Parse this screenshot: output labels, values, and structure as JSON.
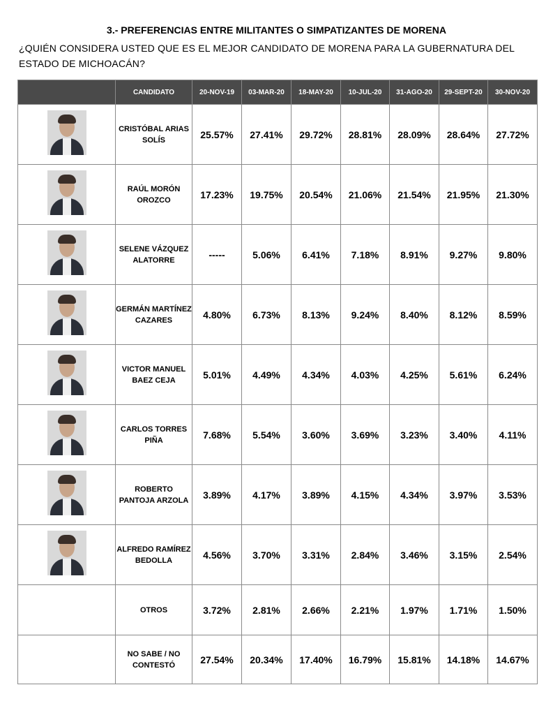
{
  "title": "3.- PREFERENCIAS ENTRE MILITANTES O SIMPATIZANTES DE MORENA",
  "question": "¿QUIÉN CONSIDERA USTED QUE ES EL MEJOR CANDIDATO DE MORENA PARA LA GUBERNATURA DEL ESTADO DE MICHOACÁN?",
  "table": {
    "headers": [
      "",
      "CANDIDATO",
      "20-NOV-19",
      "03-MAR-20",
      "18-MAY-20",
      "10-JUL-20",
      "31-AGO-20",
      "29-SEPT-20",
      "30-NOV-20"
    ],
    "rows": [
      {
        "name": "CRISTÓBAL ARIAS SOLÍS",
        "photo": "portrait-photo",
        "values": [
          "25.57%",
          "27.41%",
          "29.72%",
          "28.81%",
          "28.09%",
          "28.64%",
          "27.72%"
        ]
      },
      {
        "name": "RAÚL MORÓN OROZCO",
        "photo": "portrait-photo",
        "values": [
          "17.23%",
          "19.75%",
          "20.54%",
          "21.06%",
          "21.54%",
          "21.95%",
          "21.30%"
        ]
      },
      {
        "name": "SELENE VÁZQUEZ ALATORRE",
        "photo": "portrait-photo",
        "values": [
          "-----",
          "5.06%",
          "6.41%",
          "7.18%",
          "8.91%",
          "9.27%",
          "9.80%"
        ]
      },
      {
        "name": "GERMÁN MARTÍNEZ CAZARES",
        "photo": "portrait-photo",
        "values": [
          "4.80%",
          "6.73%",
          "8.13%",
          "9.24%",
          "8.40%",
          "8.12%",
          "8.59%"
        ]
      },
      {
        "name": "VICTOR MANUEL BAEZ CEJA",
        "photo": "portrait-photo",
        "values": [
          "5.01%",
          "4.49%",
          "4.34%",
          "4.03%",
          "4.25%",
          "5.61%",
          "6.24%"
        ]
      },
      {
        "name": "CARLOS TORRES PIÑA",
        "photo": "portrait-photo",
        "values": [
          "7.68%",
          "5.54%",
          "3.60%",
          "3.69%",
          "3.23%",
          "3.40%",
          "4.11%"
        ]
      },
      {
        "name": "ROBERTO PANTOJA ARZOLA",
        "photo": "portrait-photo",
        "values": [
          "3.89%",
          "4.17%",
          "3.89%",
          "4.15%",
          "4.34%",
          "3.97%",
          "3.53%"
        ]
      },
      {
        "name": "ALFREDO RAMÍREZ BEDOLLA",
        "photo": "portrait-photo",
        "values": [
          "4.56%",
          "3.70%",
          "3.31%",
          "2.84%",
          "3.46%",
          "3.15%",
          "2.54%"
        ]
      },
      {
        "name": "OTROS",
        "photo": "",
        "values": [
          "3.72%",
          "2.81%",
          "2.66%",
          "2.21%",
          "1.97%",
          "1.71%",
          "1.50%"
        ]
      },
      {
        "name": "NO SABE / NO CONTESTÓ",
        "photo": "",
        "values": [
          "27.54%",
          "20.34%",
          "17.40%",
          "16.79%",
          "15.81%",
          "14.18%",
          "14.67%"
        ]
      }
    ]
  },
  "colors": {
    "header_bg": "#4a4a4a",
    "header_text": "#ffffff",
    "border": "#8a8a8a"
  }
}
